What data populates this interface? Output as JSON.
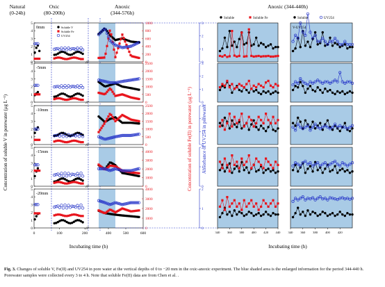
{
  "figure": {
    "caption_label": "Fig. 3.",
    "caption_text": "Changes of soluble V, Fe(II) and UV254 in pore water at the vertical depths of 0 to −20 mm in the oxic-anoxic experiment. The blue shaded area is the enlarged information for the period 344-440 h. Porewater samples were collected every 3 to 4 h. Note that soluble Fe(II) data are from Chen et al. ."
  },
  "colors": {
    "soluble_v": "#000000",
    "soluble_fe": "#e8141c",
    "uv254": "#2332c8",
    "shade": "#a9cbe6",
    "phase_line": "#2332c8"
  },
  "chart_data": [
    {
      "type": "scatter",
      "panel": "overview",
      "phases": [
        {
          "label": "Natural",
          "range": "(0-24h)"
        },
        {
          "label": "Oxic",
          "range": "(80-200h)"
        },
        {
          "label": "Anoxic",
          "range": "(344-576h)"
        }
      ],
      "shaded_range_h": [
        344,
        440
      ],
      "xlabel": "Incubating time (h)",
      "x_ticks": [
        0,
        100,
        200,
        400,
        500,
        600
      ],
      "y_left_label": "Concentration of soluble V in porewater (μg L⁻¹)",
      "y_mid_label": "Concentration of soluble Fe(II) in porewater (μg L⁻¹)",
      "y_right_label": "Absorbance of UV254 in porewater",
      "legend": [
        "Soluble V",
        "Soluble Fe",
        "UV254"
      ],
      "rows": [
        {
          "depth": "0mm",
          "v_ticks": [
            0,
            1,
            2,
            3,
            4,
            5
          ],
          "fe_ticks": [
            0,
            200,
            400,
            600,
            800,
            1000
          ],
          "fe_max": 1000,
          "uv_ticks": [
            0,
            1,
            2,
            3
          ],
          "uv_max": 3,
          "v_natural": [
            1.2,
            1.8,
            2.1,
            1.4
          ],
          "v_oxic": 1.1,
          "v_anoxic": [
            3.6,
            4.3,
            3.4,
            2.8,
            3.0,
            2.6,
            2.5
          ],
          "fe_natural": 80,
          "fe_oxic": 90,
          "fe_anoxic": [
            100,
            110,
            850,
            120,
            700,
            150,
            100
          ],
          "uv_natural": 1.4,
          "uv_oxic": 1.0,
          "uv_anoxic": [
            2.1,
            2.6,
            1.6,
            1.3,
            1.1,
            1.2,
            1.5
          ]
        },
        {
          "depth": "-5mm",
          "v_ticks": [
            0,
            1,
            2,
            3,
            4,
            5
          ],
          "fe_ticks": [
            0,
            500,
            1000,
            1500,
            2000,
            2500
          ],
          "fe_max": 2500,
          "uv_ticks": [
            0,
            1,
            2,
            3
          ],
          "uv_max": 3,
          "v_natural": [
            0.9,
            1.1,
            1.3
          ],
          "v_oxic": 0.9,
          "v_anoxic": [
            2.6,
            2.0,
            2.2,
            2.4,
            2.0,
            1.8,
            1.6
          ],
          "fe_natural": 500,
          "fe_oxic": 200,
          "fe_anoxic": [
            600,
            500,
            900,
            400,
            500,
            300,
            200
          ],
          "uv_natural": 1.3,
          "uv_oxic": 1.2,
          "uv_anoxic": [
            1.7,
            1.6,
            1.5,
            1.5,
            1.6,
            1.7,
            1.8
          ]
        },
        {
          "depth": "-10mm",
          "v_ticks": [
            0,
            1,
            2,
            3,
            4,
            5
          ],
          "fe_ticks": [
            0,
            500,
            1000,
            1500,
            2000,
            2500
          ],
          "fe_max": 2500,
          "uv_ticks": [
            0,
            1,
            2,
            3
          ],
          "uv_max": 3,
          "v_natural": [
            1.5,
            1.9,
            2.2
          ],
          "v_oxic": 1.3,
          "v_anoxic": [
            3.6,
            2.9,
            3.3,
            3.5,
            2.8,
            2.8,
            2.7
          ],
          "fe_natural": 300,
          "fe_oxic": 200,
          "fe_anoxic": [
            800,
            1400,
            2000,
            1500,
            1900,
            1600,
            1500
          ],
          "uv_natural": 1.2,
          "uv_oxic": 0.7,
          "uv_anoxic": [
            0.6,
            0.4,
            0.5,
            0.6,
            0.7,
            0.7,
            0.8
          ]
        },
        {
          "depth": "-15mm",
          "v_ticks": [
            0,
            1,
            2,
            3,
            4,
            5
          ],
          "fe_ticks": [
            0,
            1000,
            2000,
            3000,
            4000
          ],
          "fe_max": 4500,
          "uv_ticks": [
            0,
            1,
            2
          ],
          "uv_max": 2,
          "v_natural": [
            1.3,
            1.9,
            2.3
          ],
          "v_oxic": 0.8,
          "v_anoxic": [
            2.7,
            2.2,
            3.1,
            2.7,
            1.7,
            1.5,
            1.3
          ],
          "fe_natural": 1800,
          "fe_oxic": 400,
          "fe_anoxic": [
            2500,
            1900,
            2400,
            2300,
            1800,
            1600,
            1500
          ],
          "uv_natural": 1.1,
          "uv_oxic": 0.6,
          "uv_anoxic": [
            0.9,
            0.9,
            0.8,
            0.9,
            0.8,
            0.8,
            0.9
          ]
        },
        {
          "depth": "-20mm",
          "v_ticks": [
            0,
            1,
            2,
            3,
            4,
            5
          ],
          "fe_ticks": [
            0,
            1000,
            2000,
            3000,
            4000
          ],
          "fe_max": 4000,
          "uv_ticks": [
            0,
            1,
            2
          ],
          "uv_max": 2,
          "v_natural": [
            1.1,
            1.5,
            1.8
          ],
          "v_oxic": 0.8,
          "v_anoxic": [
            2.2,
            1.9,
            1.8,
            1.7,
            1.6,
            1.5,
            1.4
          ],
          "fe_natural": 1500,
          "fe_oxic": 1300,
          "fe_anoxic": [
            1800,
            1500,
            1900,
            1600,
            2000,
            1700,
            1800
          ],
          "uv_natural": 1.2,
          "uv_oxic": 1.1,
          "uv_anoxic": [
            1.4,
            1.3,
            1.2,
            1.3,
            1.2,
            1.3,
            1.3
          ]
        }
      ]
    },
    {
      "type": "line",
      "panel": "zoom",
      "title": "Anoxic  (344-440h)",
      "xlabel": "Incubating time (h)",
      "x_ticks": [
        340,
        360,
        380,
        400,
        420,
        440
      ],
      "left_legend": [
        "Soluble",
        "Soluble Fe"
      ],
      "right_legend": [
        "Soluble",
        "UV254"
      ],
      "right_inset_label": "V-UV254",
      "x": [
        344,
        348,
        352,
        356,
        360,
        364,
        368,
        372,
        376,
        380,
        384,
        388,
        392,
        396,
        400,
        404,
        408,
        412,
        416,
        420,
        424,
        428,
        432,
        436,
        440
      ],
      "rows": [
        {
          "v": [
            2.6,
            2.8,
            3.6,
            2.9,
            4.1,
            3.0,
            3.3,
            2.9,
            3.5,
            4.0,
            3.1,
            3.2,
            4.0,
            3.0,
            3.1,
            3.6,
            3.0,
            3.2,
            3.1,
            2.9,
            3.0,
            3.1,
            2.8,
            2.9,
            2.9
          ],
          "fe": [
            0.12,
            0.1,
            0.14,
            0.09,
            0.11,
            0.9,
            0.13,
            0.1,
            0.12,
            0.85,
            0.1,
            0.11,
            0.95,
            0.12,
            0.1,
            0.11,
            0.12,
            0.1,
            0.11,
            0.11,
            0.12,
            0.1,
            0.1,
            0.11,
            0.12
          ],
          "uv": [
            0.6,
            0.8,
            0.7,
            1.2,
            0.9,
            0.8,
            1.5,
            0.9,
            0.7,
            0.8,
            0.6,
            0.6,
            0.7,
            0.6,
            0.5,
            0.6,
            0.6,
            0.7,
            0.6,
            0.5,
            0.5,
            0.6,
            0.5,
            0.5,
            0.5
          ]
        },
        {
          "v": [
            2.7,
            3.0,
            2.9,
            3.3,
            3.0,
            2.5,
            2.8,
            3.0,
            2.7,
            2.6,
            2.9,
            2.7,
            2.5,
            2.8,
            2.6,
            2.7,
            2.5,
            2.4,
            2.6,
            2.5,
            2.6,
            2.4,
            2.5,
            2.6,
            2.5
          ],
          "fe": [
            0.4,
            0.5,
            0.45,
            0.6,
            0.4,
            0.5,
            0.35,
            0.4,
            0.5,
            0.45,
            0.4,
            0.5,
            0.6,
            0.35,
            0.45,
            0.4,
            0.5,
            0.45,
            0.4,
            0.55,
            0.6,
            0.45,
            0.4,
            0.5,
            0.45
          ],
          "uv": [
            0.5,
            0.6,
            0.55,
            0.7,
            0.6,
            0.55,
            0.5,
            0.6,
            0.55,
            0.6,
            0.65,
            0.6,
            0.55,
            0.6,
            0.6,
            0.55,
            0.6,
            0.65,
            0.6,
            0.9,
            0.6,
            0.55,
            0.6,
            0.6,
            0.55
          ]
        },
        {
          "v": [
            3.4,
            3.2,
            3.8,
            3.5,
            3.0,
            3.6,
            3.3,
            3.1,
            3.5,
            3.0,
            3.2,
            3.4,
            2.9,
            3.3,
            3.6,
            3.1,
            2.9,
            3.2,
            3.0,
            2.8,
            3.1,
            3.4,
            2.9,
            2.8,
            3.0
          ],
          "fe": [
            0.5,
            0.7,
            0.4,
            0.6,
            0.9,
            0.5,
            0.8,
            0.6,
            0.7,
            0.9,
            0.5,
            0.6,
            0.8,
            0.7,
            0.5,
            0.6,
            0.8,
            0.7,
            0.6,
            0.9,
            0.7,
            0.6,
            0.8,
            0.6,
            0.7
          ],
          "uv": [
            0.5,
            0.4,
            0.6,
            0.5,
            0.45,
            0.5,
            0.55,
            0.4,
            0.5,
            0.6,
            0.5,
            0.45,
            0.5,
            0.55,
            0.5,
            0.45,
            0.5,
            0.6,
            0.5,
            0.55,
            0.5,
            0.5,
            0.45,
            0.5,
            0.55
          ]
        },
        {
          "v": [
            3.0,
            3.4,
            2.9,
            3.2,
            3.5,
            2.8,
            3.1,
            3.3,
            2.9,
            3.6,
            3.0,
            3.2,
            2.8,
            3.1,
            3.4,
            2.9,
            3.0,
            3.3,
            2.8,
            3.0,
            3.1,
            2.9,
            3.0,
            2.8,
            2.9
          ],
          "fe": [
            0.7,
            0.5,
            0.8,
            0.6,
            0.4,
            0.9,
            0.6,
            0.7,
            0.5,
            0.8,
            0.6,
            0.7,
            0.9,
            0.5,
            0.6,
            0.8,
            0.7,
            0.6,
            0.5,
            0.8,
            0.7,
            0.6,
            0.5,
            0.7,
            0.6
          ],
          "uv": [
            0.6,
            0.7,
            0.65,
            0.6,
            0.7,
            0.75,
            0.65,
            0.7,
            0.6,
            0.65,
            0.7,
            0.6,
            0.65,
            0.7,
            0.6,
            0.65,
            0.7,
            0.75,
            0.65,
            0.6,
            0.7,
            0.65,
            0.6,
            0.65,
            0.7
          ]
        },
        {
          "v": [
            2.6,
            2.9,
            3.3,
            2.8,
            3.0,
            2.7,
            3.1,
            2.8,
            3.0,
            2.9,
            2.7,
            2.8,
            3.0,
            2.9,
            2.7,
            2.8,
            2.9,
            2.7,
            2.8,
            3.0,
            2.8,
            2.7,
            2.9,
            2.8,
            2.8
          ],
          "fe": [
            0.6,
            0.8,
            0.5,
            0.9,
            0.6,
            0.7,
            0.8,
            0.6,
            0.7,
            0.5,
            0.8,
            0.6,
            0.7,
            0.8,
            0.6,
            0.7,
            0.5,
            0.6,
            0.8,
            0.7,
            0.6,
            0.7,
            0.8,
            0.6,
            0.7
          ],
          "uv": [
            0.8,
            0.9,
            0.85,
            0.9,
            0.95,
            0.85,
            0.9,
            0.88,
            0.92,
            0.85,
            0.9,
            0.95,
            0.88,
            0.9,
            0.85,
            0.92,
            0.9,
            0.88,
            0.86,
            0.9,
            0.92,
            0.88,
            0.9,
            0.87,
            0.9
          ]
        }
      ]
    }
  ]
}
